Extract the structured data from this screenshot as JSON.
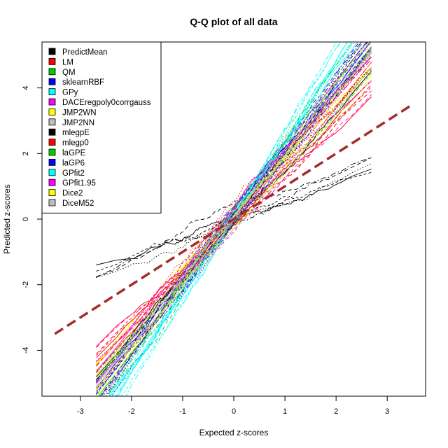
{
  "chart_data": {
    "type": "line",
    "title": "Q-Q plot of all data",
    "xlabel": "Expected z-scores",
    "ylabel": "Predicted z-scores",
    "xlim": [
      -3.75,
      3.75
    ],
    "ylim": [
      -5.4,
      5.4
    ],
    "xticks": [
      -3,
      -2,
      -1,
      0,
      1,
      2,
      3
    ],
    "yticks": [
      -4,
      -2,
      0,
      2,
      4
    ],
    "grid": false,
    "legend_position": "top-left",
    "reference_line": {
      "slope": 1,
      "intercept": 0,
      "x": [
        -3.5,
        3.5
      ],
      "color": "#a52a2a",
      "style": "dashed"
    },
    "series": [
      {
        "name": "PredictMean",
        "color": "#000000",
        "slope": 0.62
      },
      {
        "name": "LM",
        "color": "#ff0000",
        "slope": 1.55
      },
      {
        "name": "QM",
        "color": "#00cd00",
        "slope": 1.85
      },
      {
        "name": "sklearnRBF",
        "color": "#0000ff",
        "slope": 2.05
      },
      {
        "name": "GPy",
        "color": "#00ffff",
        "slope": 2.2
      },
      {
        "name": "DACEregpoly0corrgauss",
        "color": "#ff00ff",
        "slope": 1.9
      },
      {
        "name": "JMP2WN",
        "color": "#ffff00",
        "slope": 1.75
      },
      {
        "name": "JMP2NN",
        "color": "#bebebe",
        "slope": 1.8
      },
      {
        "name": "mlegpE",
        "color": "#000000",
        "slope": 1.95
      },
      {
        "name": "mlegp0",
        "color": "#ff0000",
        "slope": 1.7
      },
      {
        "name": "laGPE",
        "color": "#00cd00",
        "slope": 2.0
      },
      {
        "name": "laGP6",
        "color": "#0000ff",
        "slope": 2.1
      },
      {
        "name": "GPfit2",
        "color": "#00ffff",
        "slope": 2.4
      },
      {
        "name": "GPfit1.95",
        "color": "#ff00ff",
        "slope": 1.65
      },
      {
        "name": "Dice2",
        "color": "#ffff00",
        "slope": 1.85
      },
      {
        "name": "DiceM52",
        "color": "#bebebe",
        "slope": 1.9
      }
    ]
  }
}
